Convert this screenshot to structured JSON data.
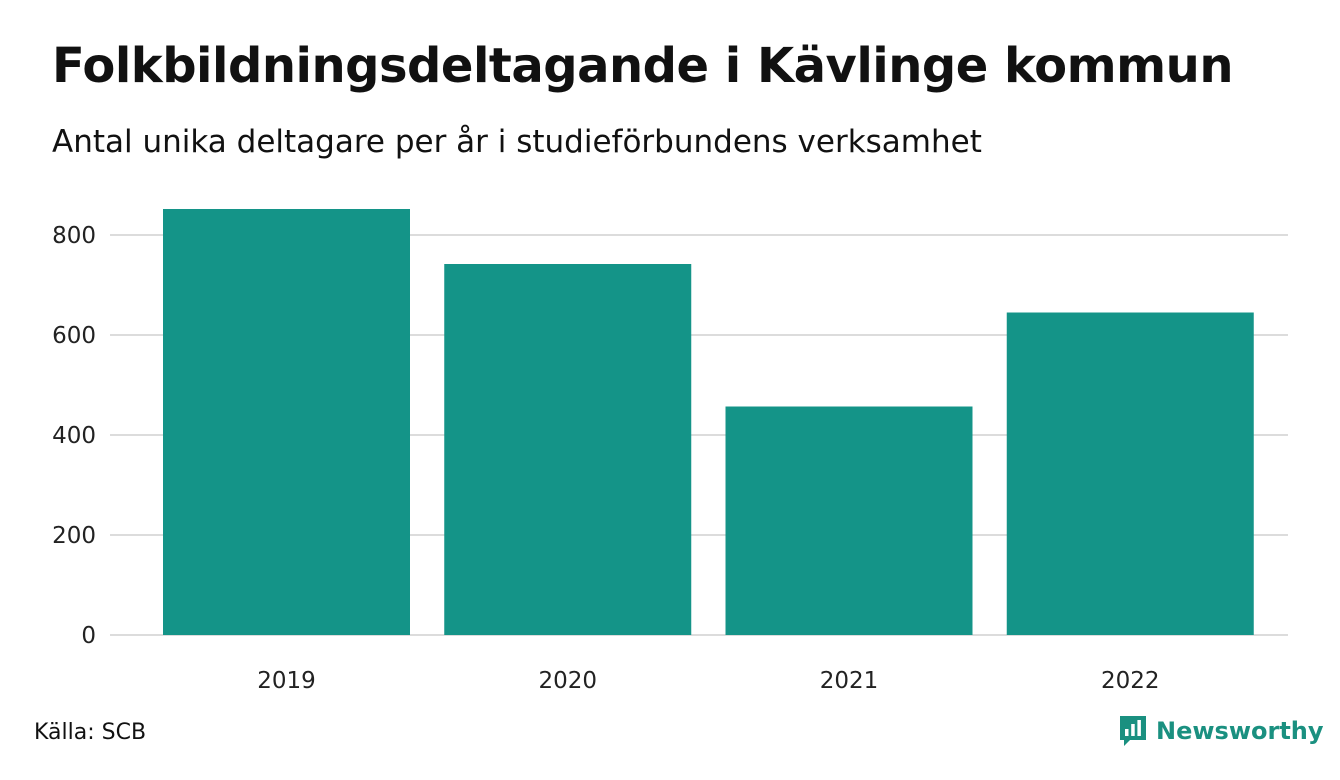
{
  "title": "Folkbildningsdeltagande i Kävlinge kommun",
  "subtitle": "Antal unika deltagare per år i studieförbundens verksamhet",
  "source": "Källa: SCB",
  "brand": {
    "name": "Newsworthy",
    "icon": "newsworthy-logo-icon"
  },
  "colors": {
    "bar": "#149488",
    "grid": "#dcdcdc",
    "brand": "#1a9080"
  },
  "chart_data": {
    "type": "bar",
    "title": "Folkbildningsdeltagande i Kävlinge kommun",
    "subtitle": "Antal unika deltagare per år i studieförbundens verksamhet",
    "categories": [
      "2019",
      "2020",
      "2021",
      "2022"
    ],
    "values": [
      852,
      742,
      457,
      645
    ],
    "xlabel": "",
    "ylabel": "",
    "ylim": [
      0,
      852
    ],
    "yticks": [
      0,
      200,
      400,
      600,
      800
    ],
    "grid": true,
    "legend": "none"
  }
}
